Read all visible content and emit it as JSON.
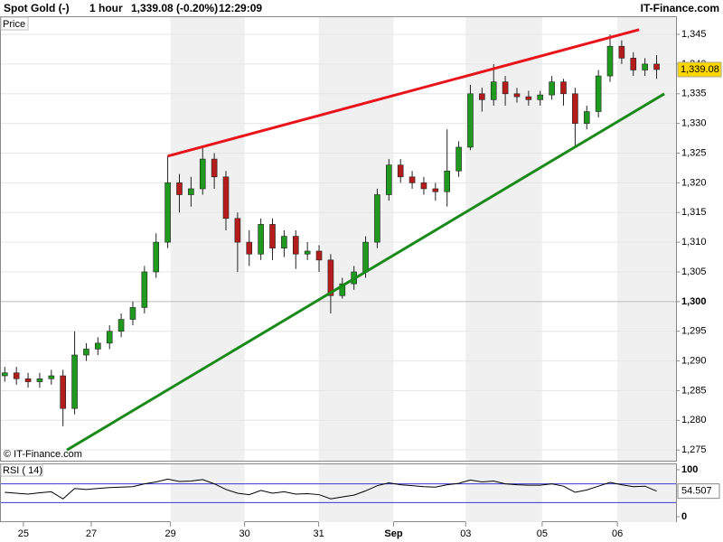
{
  "chart_data": {
    "type": "candlestick",
    "title": "Spot Gold (-)",
    "interval": "1 hour",
    "last_quote": "1,339.08 (-0.20%)",
    "time": "12:29:09",
    "source": "IT-Finance.com",
    "copyright": "© IT-Finance.com",
    "y_label": "Price",
    "x": [
      1,
      4,
      7,
      10,
      13,
      16,
      19,
      22,
      25,
      28,
      31,
      34,
      37,
      40,
      43,
      46,
      49,
      52,
      55,
      58,
      61,
      64,
      67,
      70,
      73,
      76,
      79,
      82,
      85,
      88,
      91,
      94,
      97,
      100,
      103,
      106,
      109,
      112,
      115,
      118,
      121,
      124,
      127,
      130,
      133,
      136,
      139,
      142,
      145,
      148,
      151,
      154,
      157,
      160,
      163,
      166,
      169
    ],
    "open": [
      1287.5,
      1288,
      1287,
      1286.5,
      1287,
      1287.5,
      1282,
      1291,
      1292,
      1293,
      1295,
      1297,
      1299,
      1305,
      1310,
      1320,
      1318,
      1319,
      1324,
      1321,
      1314,
      1310,
      1308,
      1313,
      1309,
      1311,
      1308,
      1308.5,
      1307,
      1301,
      1303,
      1305,
      1310,
      1318,
      1323,
      1321,
      1320,
      1319,
      1318.5,
      1322,
      1326,
      1335,
      1334,
      1337,
      1335,
      1334.5,
      1334,
      1334.8,
      1337,
      1335,
      1330,
      1332,
      1338,
      1343,
      1341,
      1339,
      1340
    ],
    "high": [
      1289,
      1289,
      1288,
      1288,
      1288.5,
      1288.5,
      1295,
      1293,
      1294,
      1296,
      1298,
      1300,
      1306,
      1311.5,
      1324.5,
      1321.5,
      1321,
      1326,
      1325,
      1322,
      1315,
      1312,
      1314,
      1314,
      1312,
      1312,
      1310,
      1309.5,
      1308,
      1304,
      1306,
      1311,
      1319,
      1324,
      1324,
      1322,
      1321,
      1320,
      1329,
      1327,
      1336.5,
      1336,
      1340,
      1338,
      1336,
      1335.5,
      1335.5,
      1338,
      1337.5,
      1336,
      1333,
      1339,
      1345,
      1344,
      1342,
      1341,
      1341.5
    ],
    "low": [
      1286.5,
      1286,
      1285.5,
      1285.5,
      1286,
      1279,
      1281,
      1290,
      1291,
      1292,
      1294,
      1296,
      1298,
      1304,
      1309,
      1315,
      1316,
      1318,
      1319,
      1312,
      1305,
      1306,
      1307,
      1307,
      1307.5,
      1305.5,
      1307,
      1305,
      1298,
      1300.5,
      1302,
      1304,
      1309,
      1317,
      1320,
      1319,
      1318,
      1317,
      1316,
      1321,
      1325.5,
      1332,
      1333,
      1333,
      1333.5,
      1333,
      1333,
      1334,
      1333,
      1326,
      1329,
      1331,
      1337,
      1340,
      1338,
      1338,
      1337.5
    ],
    "close": [
      1288,
      1287,
      1286.5,
      1287,
      1287.5,
      1282,
      1291,
      1292,
      1293,
      1295,
      1297,
      1299,
      1305,
      1310,
      1320,
      1318,
      1319,
      1324,
      1321,
      1314,
      1310,
      1308,
      1313,
      1309,
      1311,
      1308,
      1308.5,
      1307,
      1301,
      1303,
      1305,
      1310,
      1318,
      1323,
      1321,
      1320,
      1319,
      1318.5,
      1322,
      1326,
      1335,
      1334,
      1337,
      1335,
      1334.5,
      1334,
      1334.8,
      1337,
      1335,
      1330,
      1332,
      1338,
      1343,
      1341,
      1339,
      1340,
      1339.08
    ],
    "last_price": {
      "value": 1339.08,
      "label": "1,339.08"
    },
    "up_color": "#1f9a1f",
    "down_color": "#b51c1c",
    "xlim": [
      0,
      174
    ],
    "xticks": [
      {
        "value": 5.8,
        "label": "25"
      },
      {
        "value": 23.3,
        "label": "27"
      },
      {
        "value": 43.7,
        "label": "29"
      },
      {
        "value": 62.8,
        "label": "30"
      },
      {
        "value": 81.9,
        "label": "31"
      },
      {
        "value": 101.2,
        "label": "Sep"
      },
      {
        "value": 119.8,
        "label": "03"
      },
      {
        "value": 139.5,
        "label": "05"
      },
      {
        "value": 158.9,
        "label": "06"
      }
    ],
    "ylim": [
      1273.2,
      1347.9
    ],
    "yticks": [
      {
        "value": 1275,
        "label": "1,275"
      },
      {
        "value": 1280,
        "label": "1,280"
      },
      {
        "value": 1285,
        "label": "1,285"
      },
      {
        "value": 1290,
        "label": "1,290"
      },
      {
        "value": 1295,
        "label": "1,295"
      },
      {
        "value": 1300,
        "label": "1,300"
      },
      {
        "value": 1305,
        "label": "1,305"
      },
      {
        "value": 1310,
        "label": "1,310"
      },
      {
        "value": 1315,
        "label": "1,315"
      },
      {
        "value": 1320,
        "label": "1,320"
      },
      {
        "value": 1325,
        "label": "1,325"
      },
      {
        "value": 1330,
        "label": "1,330"
      },
      {
        "value": 1335,
        "label": "1,335"
      },
      {
        "value": 1340,
        "label": "1,340"
      },
      {
        "value": 1345,
        "label": "1,345"
      }
    ],
    "grid": true,
    "trendlines": [
      {
        "color": "#e8141c",
        "x": [
          43,
          164.5
        ],
        "y": [
          1324.5,
          1345.8
        ]
      },
      {
        "color": "#1a8a1a",
        "x": [
          17,
          171
        ],
        "y": [
          1275,
          1335
        ]
      }
    ],
    "rsi": {
      "label": "RSI ( 14)",
      "color": "#000000",
      "values": [
        52,
        50,
        48,
        51,
        53,
        38,
        60,
        58,
        60,
        62,
        63,
        64,
        70,
        74,
        80,
        75,
        76,
        79,
        70,
        58,
        50,
        47,
        56,
        50,
        53,
        48,
        49,
        47,
        38,
        42,
        46,
        55,
        66,
        72,
        68,
        66,
        64,
        63,
        68,
        71,
        78,
        74,
        76,
        70,
        68,
        67,
        67,
        70,
        65,
        52,
        57,
        65,
        73,
        68,
        64,
        65,
        54.507
      ],
      "last_value": 54.507,
      "ylim": [
        -11.5,
        111.5
      ],
      "yticks": [
        0,
        100
      ],
      "levels": [
        70,
        30
      ],
      "level_color": "#3a3ad0"
    }
  }
}
